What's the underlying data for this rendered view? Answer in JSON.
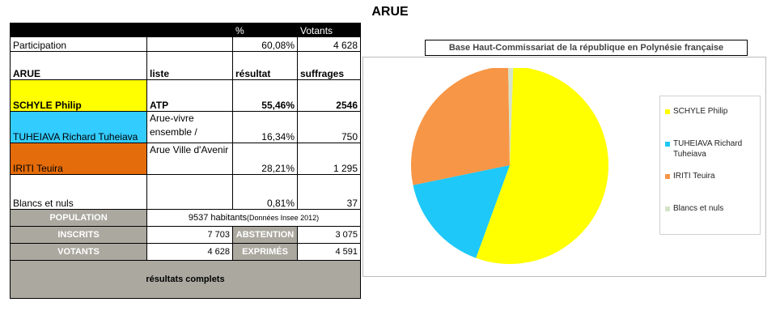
{
  "page_title": "ARUE",
  "table": {
    "header": {
      "col1": "",
      "col2": "",
      "col3": "%",
      "col4": "Votants"
    },
    "participation": {
      "label": "Participation",
      "list": "",
      "pct": "60,08%",
      "votes": "4 628"
    },
    "subheader": {
      "col1": "ARUE",
      "col2": "liste",
      "col3": "résultat",
      "col4": "suffrages"
    },
    "candidates": [
      {
        "name": "SCHYLE Philip",
        "list": "ATP",
        "pct": "55,46%",
        "votes": "2546",
        "color": "#ffff00"
      },
      {
        "name": "TUHEIAVA Richard Tuheiava",
        "list": "Arue-vivre ensemble /",
        "pct": "16,34%",
        "votes": "750",
        "color": "#33ccff"
      },
      {
        "name": "IRITI Teuira",
        "list": "Arue Ville d'Avenir",
        "pct": "28,21%",
        "votes": "1 295",
        "color": "#e46c0a"
      }
    ],
    "blancs": {
      "name": "Blancs et nuls",
      "list": "",
      "pct": "0,81%",
      "votes": "37"
    },
    "population": {
      "label": "POPULATION",
      "value": "9537 habitants",
      "note": "(Données Insee 2012)"
    },
    "inscrits": {
      "label": "INSCRITS",
      "value": "7 703"
    },
    "abstention": {
      "label": "ABSTENTION",
      "value": "3 075"
    },
    "votants": {
      "label": "VOTANTS",
      "value": "4 628"
    },
    "exprimes": {
      "label": "EXPRIMÉS",
      "value": "4 591"
    },
    "complete_link": "résultats complets"
  },
  "chart_data": {
    "type": "pie",
    "title": "Base Haut-Commissariat de la république en Polynésie française",
    "legend_position": "right",
    "slices": [
      {
        "label": "SCHYLE Philip",
        "value": 55.46,
        "color": "#ffff00"
      },
      {
        "label": "TUHEIAVA Richard Tuheiava",
        "value": 16.34,
        "color": "#1ec8f8"
      },
      {
        "label": "IRITI Teuira",
        "value": 28.21,
        "color": "#f79646"
      },
      {
        "label": "Blancs et nuls",
        "value": 0.81,
        "color": "#d5e3c9"
      }
    ]
  }
}
